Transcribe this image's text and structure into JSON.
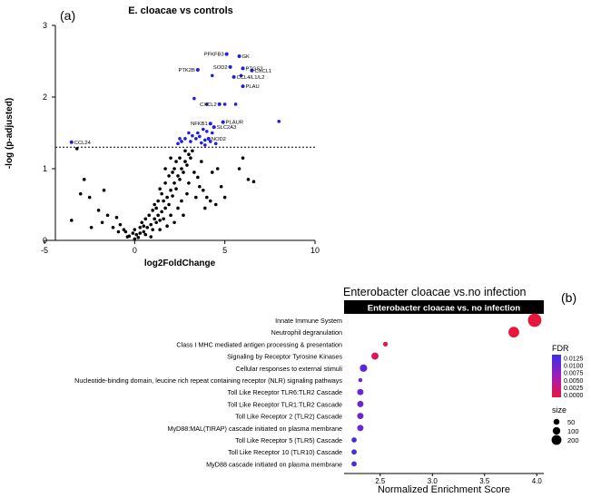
{
  "panel_a": {
    "label": "(a)",
    "title": "E. cloacae vs controls",
    "xlabel": "log2FoldChange",
    "ylabel": "-log (p-adjusted)",
    "xticks": [
      "-5",
      "0",
      "5",
      "10"
    ],
    "yticks": [
      "0",
      "1",
      "2",
      "3"
    ]
  },
  "panel_b": {
    "label": "(b)",
    "title": "Enterobacter cloacae vs.no infection",
    "strip": "Enterobacter cloacae vs. no infection",
    "xlabel": "Normalized Enrichment Score",
    "xticks": [
      "2.5",
      "3.0",
      "3.5",
      "4.0"
    ],
    "legend_fdr_title": "FDR",
    "legend_fdr_ticks": [
      "0.0125",
      "0.0100",
      "0.0075",
      "0.0050",
      "0.0025",
      "0.0000"
    ],
    "legend_size_title": "size",
    "legend_size_ticks": [
      "50",
      "100",
      "200"
    ]
  },
  "chart_data": [
    {
      "type": "scatter",
      "title": "E. cloacae vs controls",
      "xlabel": "log2FoldChange",
      "ylabel": "-log (p-adjusted)",
      "xlim": [
        -5,
        10
      ],
      "ylim": [
        0,
        3
      ],
      "threshold_y": 1.3,
      "colors": {
        "significant": "#1f1fe0",
        "nonsignificant": "#000000"
      },
      "labeled_genes": [
        {
          "label": "PFKFB3",
          "x": 5.1,
          "y": 2.6
        },
        {
          "label": "GK",
          "x": 5.8,
          "y": 2.57
        },
        {
          "label": "SOD2",
          "x": 5.3,
          "y": 2.42
        },
        {
          "label": "PTGS2",
          "x": 6.0,
          "y": 2.4
        },
        {
          "label": "PTK2B",
          "x": 3.5,
          "y": 2.38
        },
        {
          "label": "CXCL1",
          "x": 6.5,
          "y": 2.37
        },
        {
          "label": "CCL4/L1/L2",
          "x": 5.5,
          "y": 2.28
        },
        {
          "label": "PLAU",
          "x": 6.0,
          "y": 2.15
        },
        {
          "label": "CXCL2",
          "x": 4.7,
          "y": 1.9
        },
        {
          "label": "NFKB1",
          "x": 4.2,
          "y": 1.63
        },
        {
          "label": "PLAUR",
          "x": 4.9,
          "y": 1.65
        },
        {
          "label": "SLC2A3",
          "x": 4.4,
          "y": 1.58
        },
        {
          "label": "NOD2",
          "x": 4.1,
          "y": 1.42
        },
        {
          "label": "CCL24",
          "x": -3.5,
          "y": 1.37
        }
      ],
      "significant_points": [
        [
          3.3,
          1.98
        ],
        [
          4.0,
          1.9
        ],
        [
          5.0,
          1.9
        ],
        [
          5.6,
          1.9
        ],
        [
          4.3,
          2.3
        ],
        [
          5.9,
          2.3
        ],
        [
          8.0,
          1.66
        ],
        [
          3.8,
          1.55
        ],
        [
          4.0,
          1.52
        ],
        [
          4.3,
          1.5
        ],
        [
          3.6,
          1.45
        ],
        [
          3.9,
          1.4
        ],
        [
          4.2,
          1.38
        ],
        [
          4.5,
          1.35
        ],
        [
          3.9,
          1.33
        ],
        [
          3.0,
          1.5
        ],
        [
          3.2,
          1.46
        ],
        [
          2.8,
          1.42
        ],
        [
          3.5,
          1.5
        ],
        [
          3.4,
          1.42
        ],
        [
          2.6,
          1.38
        ],
        [
          2.4,
          1.35
        ],
        [
          2.5,
          1.42
        ],
        [
          3.1,
          1.38
        ],
        [
          3.7,
          1.36
        ]
      ],
      "nonsignificant_points": [
        [
          -3.2,
          1.28
        ],
        [
          -2.8,
          0.85
        ],
        [
          -3.0,
          0.65
        ],
        [
          -2.5,
          0.6
        ],
        [
          -1.7,
          0.7
        ],
        [
          -1.5,
          0.35
        ],
        [
          -3.5,
          0.28
        ],
        [
          -2.0,
          0.42
        ],
        [
          -1.8,
          0.25
        ],
        [
          -2.4,
          0.18
        ],
        [
          -1.0,
          0.32
        ],
        [
          -0.8,
          0.22
        ],
        [
          -1.2,
          0.18
        ],
        [
          -0.5,
          0.12
        ],
        [
          -0.3,
          0.06
        ],
        [
          0.0,
          0.02
        ],
        [
          0.2,
          0.04
        ],
        [
          0.1,
          0.08
        ],
        [
          -0.1,
          0.1
        ],
        [
          0.3,
          0.1
        ],
        [
          0.5,
          0.12
        ],
        [
          0.7,
          0.18
        ],
        [
          0.6,
          0.08
        ],
        [
          0.9,
          0.22
        ],
        [
          1.0,
          0.15
        ],
        [
          1.1,
          0.3
        ],
        [
          1.3,
          0.35
        ],
        [
          1.2,
          0.25
        ],
        [
          1.5,
          0.4
        ],
        [
          1.4,
          0.28
        ],
        [
          1.7,
          0.45
        ],
        [
          1.6,
          0.55
        ],
        [
          1.8,
          0.6
        ],
        [
          1.9,
          0.5
        ],
        [
          2.0,
          0.7
        ],
        [
          2.1,
          0.62
        ],
        [
          2.2,
          0.8
        ],
        [
          2.3,
          0.72
        ],
        [
          2.4,
          0.9
        ],
        [
          2.5,
          0.85
        ],
        [
          2.6,
          1.0
        ],
        [
          2.7,
          0.95
        ],
        [
          2.8,
          1.1
        ],
        [
          2.9,
          1.05
        ],
        [
          3.0,
          1.2
        ],
        [
          3.1,
          1.15
        ],
        [
          2.2,
          1.0
        ],
        [
          2.5,
          1.15
        ],
        [
          2.8,
          1.25
        ],
        [
          3.2,
          1.25
        ],
        [
          3.3,
          0.95
        ],
        [
          3.5,
          0.88
        ],
        [
          3.6,
          0.75
        ],
        [
          3.7,
          1.1
        ],
        [
          3.8,
          0.7
        ],
        [
          4.0,
          0.6
        ],
        [
          4.2,
          0.55
        ],
        [
          4.5,
          0.5
        ],
        [
          3.4,
          0.6
        ],
        [
          1.2,
          0.45
        ],
        [
          0.8,
          0.35
        ],
        [
          1.6,
          0.3
        ],
        [
          2.0,
          0.35
        ],
        [
          2.4,
          0.45
        ],
        [
          1.9,
          0.9
        ],
        [
          2.3,
          1.1
        ],
        [
          1.7,
          0.8
        ],
        [
          1.5,
          0.65
        ],
        [
          1.3,
          0.55
        ],
        [
          1.0,
          0.42
        ],
        [
          0.4,
          0.25
        ],
        [
          0.6,
          0.3
        ],
        [
          2.6,
          0.55
        ],
        [
          3.0,
          0.8
        ],
        [
          2.9,
          0.65
        ],
        [
          4.6,
          1.0
        ],
        [
          4.8,
          0.75
        ],
        [
          5.0,
          0.6
        ],
        [
          5.8,
          1.0
        ],
        [
          6.0,
          1.15
        ],
        [
          6.3,
          0.85
        ],
        [
          6.6,
          0.82
        ],
        [
          4.3,
          0.95
        ],
        [
          3.9,
          0.45
        ],
        [
          1.4,
          0.15
        ],
        [
          1.8,
          0.2
        ],
        [
          2.2,
          0.25
        ],
        [
          2.7,
          0.35
        ],
        [
          0.9,
          0.05
        ],
        [
          0.5,
          0.2
        ],
        [
          -0.6,
          0.15
        ],
        [
          -0.4,
          0.05
        ],
        [
          -0.9,
          0.12
        ],
        [
          0.0,
          0.15
        ],
        [
          0.3,
          0.18
        ],
        [
          1.1,
          0.5
        ],
        [
          1.4,
          0.72
        ],
        [
          1.7,
          1.0
        ],
        [
          2.0,
          1.15
        ],
        [
          2.1,
          0.95
        ]
      ]
    },
    {
      "type": "scatter",
      "title": "Enterobacter cloacae vs.no infection",
      "xlabel": "Normalized Enrichment Score",
      "xlim": [
        2.18,
        4.05
      ],
      "color_scale": {
        "title": "FDR",
        "low": "#e8183c",
        "high": "#3b2ee8",
        "range": [
          0,
          0.0135
        ]
      },
      "categories": [
        "Innate Immune System",
        "Neutrophil degranulation",
        "Class I MHC mediated antigen processing & presentation",
        "Signaling by Receptor Tyrosine Kinases",
        "Cellular responses to external stimuli",
        "Nucleotide-binding domain, leucine rich repeat containing receptor (NLR) signaling pathways",
        "Toll Like Receptor TLR6:TLR2 Cascade",
        "Toll Like Receptor TLR1:TLR2 Cascade",
        "Toll Like Receptor 2 (TLR2) Cascade",
        "MyD88:MAL(TIRAP) cascade initiated on plasma membrane",
        "Toll Like Receptor 5 (TLR5) Cascade",
        "Toll Like Receptor 10 (TLR10) Cascade",
        "MyD88 cascade initiated on plasma membrane"
      ],
      "nes": [
        3.98,
        3.78,
        2.55,
        2.45,
        2.34,
        2.31,
        2.31,
        2.31,
        2.31,
        2.31,
        2.25,
        2.25,
        2.25
      ],
      "fdr": [
        0.0,
        0.0,
        0.0008,
        0.0018,
        0.0115,
        0.0095,
        0.0105,
        0.0105,
        0.0105,
        0.0105,
        0.0125,
        0.0125,
        0.0125
      ],
      "size": [
        250,
        140,
        10,
        45,
        50,
        5,
        30,
        30,
        30,
        30,
        15,
        15,
        15
      ]
    }
  ]
}
